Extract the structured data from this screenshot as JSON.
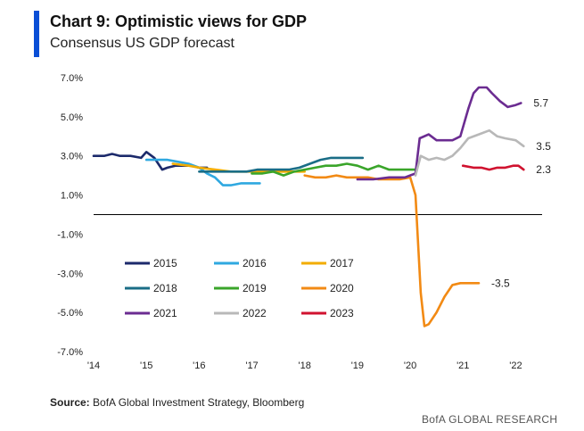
{
  "header": {
    "title": "Chart 9: Optimistic views for GDP",
    "subtitle": "Consensus US GDP forecast"
  },
  "footer": {
    "source_label": "Source:",
    "source_text": "BofA Global Investment Strategy, Bloomberg",
    "brand": "BofA GLOBAL RESEARCH"
  },
  "colors": {
    "accent": "#0a4fd6",
    "s2015": "#1c2a6b",
    "s2016": "#2fa8e0",
    "s2017": "#f2ac00",
    "s2018": "#1a6d86",
    "s2019": "#3aa52a",
    "s2020": "#f28a14",
    "s2021": "#6b2c91",
    "s2022": "#b8b8b8",
    "s2023": "#d0122f"
  },
  "chart_data": {
    "type": "line",
    "title": "Chart 9: Optimistic views for GDP",
    "subtitle": "Consensus US GDP forecast",
    "xlabel": "",
    "ylabel": "",
    "xlim": [
      2014.0,
      2022.5
    ],
    "ylim": [
      -7.0,
      7.0
    ],
    "x_ticks": [
      2014,
      2015,
      2016,
      2017,
      2018,
      2019,
      2020,
      2021,
      2022
    ],
    "x_tick_labels": [
      "'14",
      "'15",
      "'16",
      "'17",
      "'18",
      "'19",
      "'20",
      "'21",
      "'22"
    ],
    "y_ticks": [
      7,
      5,
      3,
      1,
      -1,
      -3,
      -5,
      -7
    ],
    "y_tick_labels": [
      "7.0%",
      "5.0%",
      "3.0%",
      "1.0%",
      "-1.0%",
      "-3.0%",
      "-5.0%",
      "-7.0%"
    ],
    "zero_line": true,
    "legend": {
      "placement": "lower-left",
      "columns": 3
    },
    "series": [
      {
        "name": "2015",
        "color_key": "s2015",
        "x": [
          2014.0,
          2014.2,
          2014.35,
          2014.5,
          2014.7,
          2014.9,
          2015.0,
          2015.15,
          2015.3,
          2015.4,
          2015.55,
          2015.7,
          2015.85,
          2016.0,
          2016.15
        ],
        "y": [
          3.0,
          3.0,
          3.1,
          3.0,
          3.0,
          2.9,
          3.2,
          2.9,
          2.3,
          2.4,
          2.5,
          2.5,
          2.5,
          2.4,
          2.4
        ]
      },
      {
        "name": "2016",
        "color_key": "s2016",
        "x": [
          2015.0,
          2015.2,
          2015.4,
          2015.6,
          2015.8,
          2016.0,
          2016.15,
          2016.3,
          2016.45,
          2016.6,
          2016.8,
          2017.0,
          2017.15
        ],
        "y": [
          2.8,
          2.8,
          2.8,
          2.7,
          2.6,
          2.4,
          2.1,
          1.9,
          1.5,
          1.5,
          1.6,
          1.6,
          1.6
        ]
      },
      {
        "name": "2017",
        "color_key": "s2017",
        "x": [
          2015.5,
          2015.8,
          2016.0,
          2016.3,
          2016.6,
          2016.9,
          2017.1,
          2017.3,
          2017.5,
          2017.7,
          2017.9,
          2018.0
        ],
        "y": [
          2.6,
          2.5,
          2.4,
          2.3,
          2.2,
          2.2,
          2.2,
          2.2,
          2.2,
          2.2,
          2.2,
          2.2
        ]
      },
      {
        "name": "2018",
        "color_key": "s2018",
        "x": [
          2016.0,
          2016.3,
          2016.6,
          2016.9,
          2017.1,
          2017.3,
          2017.5,
          2017.7,
          2017.9,
          2018.1,
          2018.3,
          2018.5,
          2018.8,
          2019.1
        ],
        "y": [
          2.2,
          2.2,
          2.2,
          2.2,
          2.3,
          2.3,
          2.3,
          2.3,
          2.4,
          2.6,
          2.8,
          2.9,
          2.9,
          2.9
        ]
      },
      {
        "name": "2019",
        "color_key": "s2019",
        "x": [
          2017.0,
          2017.2,
          2017.4,
          2017.6,
          2017.8,
          2018.0,
          2018.2,
          2018.4,
          2018.6,
          2018.8,
          2019.0,
          2019.2,
          2019.4,
          2019.6,
          2019.8,
          2020.0,
          2020.1
        ],
        "y": [
          2.1,
          2.1,
          2.2,
          2.0,
          2.2,
          2.3,
          2.4,
          2.5,
          2.5,
          2.6,
          2.5,
          2.3,
          2.5,
          2.3,
          2.3,
          2.3,
          2.3
        ]
      },
      {
        "name": "2020",
        "color_key": "s2020",
        "x": [
          2018.0,
          2018.2,
          2018.4,
          2018.6,
          2018.8,
          2019.0,
          2019.2,
          2019.4,
          2019.6,
          2019.8,
          2020.0,
          2020.1,
          2020.2,
          2020.27,
          2020.35,
          2020.5,
          2020.65,
          2020.8,
          2020.95,
          2021.1,
          2021.3
        ],
        "y": [
          2.0,
          1.9,
          1.9,
          2.0,
          1.9,
          1.9,
          1.9,
          1.8,
          1.8,
          1.8,
          1.9,
          1.0,
          -4.0,
          -5.7,
          -5.6,
          -5.0,
          -4.2,
          -3.6,
          -3.5,
          -3.5,
          -3.5
        ]
      },
      {
        "name": "2021",
        "color_key": "s2021",
        "x": [
          2019.0,
          2019.3,
          2019.6,
          2019.9,
          2020.1,
          2020.18,
          2020.35,
          2020.5,
          2020.65,
          2020.8,
          2020.95,
          2021.1,
          2021.2,
          2021.3,
          2021.45,
          2021.55,
          2021.7,
          2021.85,
          2022.0,
          2022.1
        ],
        "y": [
          1.8,
          1.8,
          1.9,
          1.9,
          2.1,
          3.9,
          4.1,
          3.8,
          3.8,
          3.8,
          4.0,
          5.4,
          6.2,
          6.5,
          6.5,
          6.2,
          5.8,
          5.5,
          5.6,
          5.7
        ]
      },
      {
        "name": "2022",
        "color_key": "s2022",
        "x": [
          2020.1,
          2020.2,
          2020.35,
          2020.5,
          2020.65,
          2020.8,
          2020.95,
          2021.1,
          2021.3,
          2021.5,
          2021.65,
          2021.8,
          2022.0,
          2022.15
        ],
        "y": [
          2.0,
          3.0,
          2.8,
          2.9,
          2.8,
          3.0,
          3.4,
          3.9,
          4.1,
          4.3,
          4.0,
          3.9,
          3.8,
          3.5
        ]
      },
      {
        "name": "2023",
        "color_key": "s2023",
        "x": [
          2021.0,
          2021.2,
          2021.35,
          2021.5,
          2021.65,
          2021.8,
          2021.95,
          2022.05,
          2022.15
        ],
        "y": [
          2.5,
          2.4,
          2.4,
          2.3,
          2.4,
          2.4,
          2.5,
          2.5,
          2.3
        ]
      }
    ],
    "end_labels": [
      {
        "text": "5.7",
        "x": 2022.1,
        "y": 5.7
      },
      {
        "text": "3.5",
        "x": 2022.15,
        "y": 3.5
      },
      {
        "text": "2.3",
        "x": 2022.15,
        "y": 2.3
      },
      {
        "text": "-3.5",
        "x": 2021.3,
        "y": -3.5
      }
    ]
  }
}
